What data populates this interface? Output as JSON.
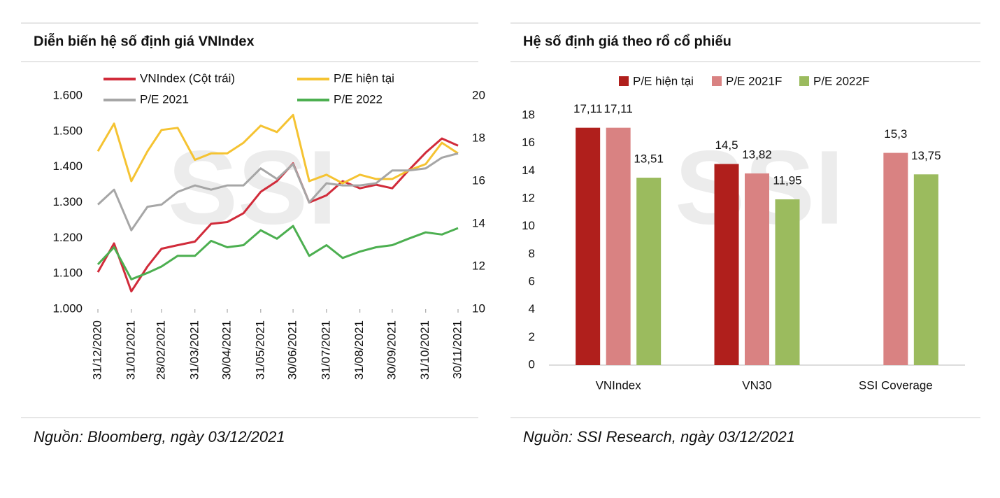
{
  "chart_data": [
    {
      "type": "line",
      "title": "Diễn biến hệ số định giá VNIndex",
      "source": "Nguồn: Bloomberg, ngày 03/12/2021",
      "watermark": "SSI",
      "x": [
        "31/12/2020",
        "15/01/2021",
        "31/01/2021",
        "15/02/2021",
        "28/02/2021",
        "15/03/2021",
        "31/03/2021",
        "15/04/2021",
        "30/04/2021",
        "15/05/2021",
        "31/05/2021",
        "15/06/2021",
        "30/06/2021",
        "15/07/2021",
        "31/07/2021",
        "15/08/2021",
        "31/08/2021",
        "15/09/2021",
        "30/09/2021",
        "15/10/2021",
        "31/10/2021",
        "15/11/2021",
        "30/11/2021"
      ],
      "xlim": [
        "31/12/2020",
        "30/11/2021"
      ],
      "xticks": [
        "31/12/2020",
        "31/01/2021",
        "28/02/2021",
        "31/03/2021",
        "30/04/2021",
        "31/05/2021",
        "30/06/2021",
        "31/07/2021",
        "31/08/2021",
        "30/09/2021",
        "31/10/2021",
        "30/11/2021"
      ],
      "ylim": [
        1000,
        1600
      ],
      "yticks": [
        {
          "value": 1000,
          "label": "1.000"
        },
        {
          "value": 1100,
          "label": "1.100"
        },
        {
          "value": 1200,
          "label": "1.200"
        },
        {
          "value": 1300,
          "label": "1.300"
        },
        {
          "value": 1400,
          "label": "1.400"
        },
        {
          "value": 1500,
          "label": "1.500"
        },
        {
          "value": 1600,
          "label": "1.600"
        }
      ],
      "y2lim": [
        10,
        20
      ],
      "y2ticks": [
        10,
        12,
        14,
        16,
        18,
        20
      ],
      "series": [
        {
          "name": "VNIndex (Cột trái)",
          "color": "#d12b3a",
          "values": [
            1104,
            1185,
            1050,
            1120,
            1170,
            1180,
            1190,
            1240,
            1245,
            1270,
            1330,
            1360,
            1410,
            1300,
            1320,
            1360,
            1340,
            1350,
            1340,
            1390,
            1440,
            1480,
            1460
          ]
        },
        {
          "name": "P/E hiện tại",
          "color": "#f5c332",
          "axis": "y2",
          "values": [
            17.4,
            18.7,
            16.0,
            17.4,
            18.4,
            18.5,
            17.0,
            17.3,
            17.3,
            17.8,
            18.6,
            18.3,
            19.1,
            16.0,
            16.3,
            15.9,
            16.3,
            16.1,
            16.1,
            16.5,
            16.8,
            17.8,
            17.3
          ]
        },
        {
          "name": "P/E 2021",
          "color": "#a6a6a6",
          "axis": "y2",
          "values": [
            14.9,
            15.6,
            13.7,
            14.8,
            14.9,
            15.5,
            15.8,
            15.6,
            15.8,
            15.8,
            16.6,
            16.1,
            16.8,
            15.0,
            15.9,
            15.8,
            15.8,
            15.9,
            16.5,
            16.5,
            16.6,
            17.1,
            17.3
          ]
        },
        {
          "name": "P/E 2022",
          "color": "#4caf50",
          "axis": "y2",
          "values": [
            12.1,
            12.9,
            11.4,
            11.7,
            12.0,
            12.5,
            12.5,
            13.2,
            12.9,
            13.0,
            13.7,
            13.3,
            13.9,
            12.5,
            13.0,
            12.4,
            12.7,
            12.9,
            13.0,
            13.3,
            13.6,
            13.5,
            13.8
          ]
        }
      ]
    },
    {
      "type": "bar",
      "title": "Hệ số định giá theo rổ cổ phiếu",
      "source": "Nguồn: SSI Research, ngày 03/12/2021",
      "watermark": "SSI",
      "categories": [
        "VNIndex",
        "VN30",
        "SSI Coverage"
      ],
      "ylim": [
        0,
        18
      ],
      "yticks": [
        0,
        2,
        4,
        6,
        8,
        10,
        12,
        14,
        16,
        18
      ],
      "series": [
        {
          "name": "P/E hiện tại",
          "color": "#b01f1c",
          "values": [
            17.11,
            14.5,
            null
          ],
          "value_labels": [
            "17,11",
            "14,5",
            null
          ]
        },
        {
          "name": "P/E 2021F",
          "color": "#d98282",
          "values": [
            17.11,
            13.82,
            15.3
          ],
          "value_labels": [
            "17,11",
            "13,82",
            "15,3"
          ]
        },
        {
          "name": "P/E 2022F",
          "color": "#9bbb5e",
          "values": [
            13.51,
            11.95,
            13.75
          ],
          "value_labels": [
            "13,51",
            "11,95",
            "13,75"
          ]
        }
      ]
    }
  ]
}
